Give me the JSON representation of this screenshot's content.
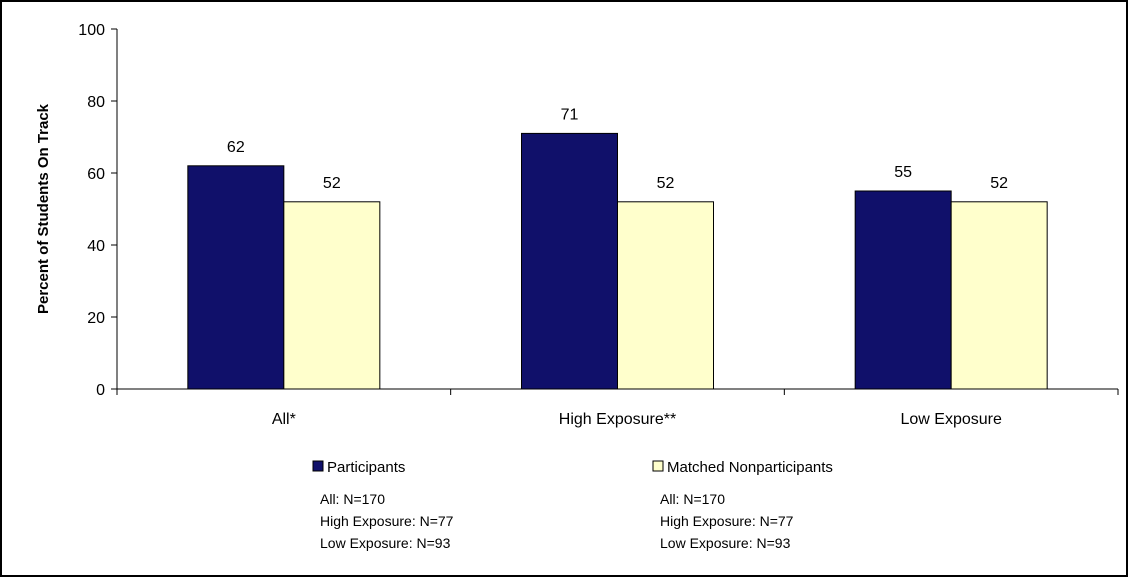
{
  "chart_data": {
    "type": "bar",
    "ylabel": "Percent of Students On Track",
    "xlabel": "",
    "ylim": [
      0,
      100
    ],
    "yticks": [
      "0",
      "20",
      "40",
      "60",
      "80",
      "100"
    ],
    "categories": [
      "All*",
      "High Exposure**",
      "Low Exposure"
    ],
    "series": [
      {
        "name": "Participants",
        "values": [
          62,
          71,
          55
        ],
        "labels": [
          "62",
          "71",
          "55"
        ],
        "color": "#10106a"
      },
      {
        "name": "Matched Nonparticipants",
        "values": [
          52,
          52,
          52
        ],
        "labels": [
          "52",
          "52",
          "52"
        ],
        "color": "#ffffcc"
      }
    ],
    "grid": false,
    "legend_position": "bottom",
    "legend_notes": [
      [
        "All: N=170",
        "High Exposure: N=77",
        "Low Exposure: N=93"
      ],
      [
        "All: N=170",
        "High Exposure: N=77",
        "Low Exposure: N=93"
      ]
    ]
  }
}
